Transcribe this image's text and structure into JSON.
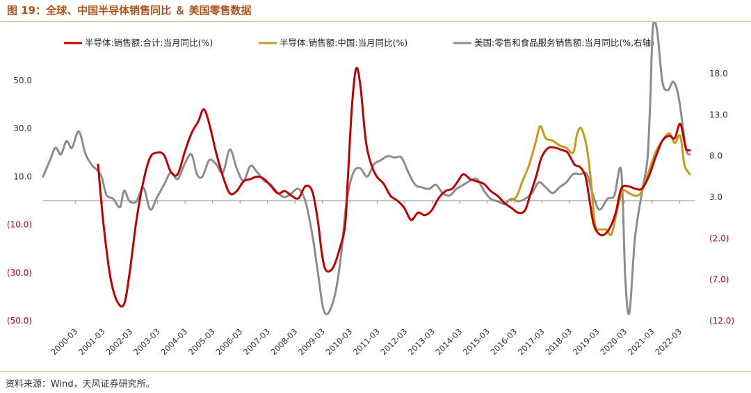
{
  "figure": {
    "title": "图 19：全球、中国半导体销售同比 ＆ 美国零售数据",
    "source": "资料来源：Wind，天风证券研究所。"
  },
  "chart_data": {
    "type": "line",
    "x_labels": [
      "2000-03",
      "2001-03",
      "2002-03",
      "2003-03",
      "2004-03",
      "2005-03",
      "2006-03",
      "2007-03",
      "2008-03",
      "2009-03",
      "2010-03",
      "2011-03",
      "2012-03",
      "2013-03",
      "2014-03",
      "2015-03",
      "2016-03",
      "2017-03",
      "2018-03",
      "2019-03",
      "2020-03",
      "2021-03",
      "2022-03"
    ],
    "y_left": {
      "ticks": [
        50,
        30,
        10,
        -10,
        -30,
        -50
      ],
      "labels": [
        "50.0",
        "30.0",
        "10.0",
        "(10.0)",
        "(30.0)",
        "(50.0)"
      ],
      "range": [
        -50,
        50
      ]
    },
    "y_right": {
      "ticks": [
        18,
        13,
        8,
        3,
        -2,
        -7,
        -12
      ],
      "labels": [
        "18.0",
        "13.0",
        "8.0",
        "3.0",
        "(2.0)",
        "(7.0)",
        "(12.0)"
      ],
      "range": [
        -12,
        18
      ]
    },
    "legend": {
      "placement": "top"
    },
    "series": [
      {
        "name": "半导体:销售额:合计:当月同比(%)",
        "axis": "left",
        "color": "#c00000",
        "points": [
          [
            2001.0,
            15
          ],
          [
            2001.2,
            -10
          ],
          [
            2001.45,
            -32
          ],
          [
            2001.7,
            -42
          ],
          [
            2001.95,
            -43
          ],
          [
            2002.15,
            -30
          ],
          [
            2002.4,
            -8
          ],
          [
            2002.65,
            8
          ],
          [
            2002.9,
            18
          ],
          [
            2003.15,
            20
          ],
          [
            2003.4,
            19
          ],
          [
            2003.65,
            12
          ],
          [
            2003.9,
            11
          ],
          [
            2004.15,
            20
          ],
          [
            2004.4,
            28
          ],
          [
            2004.65,
            33
          ],
          [
            2004.85,
            38
          ],
          [
            2005.05,
            32
          ],
          [
            2005.3,
            20
          ],
          [
            2005.55,
            10
          ],
          [
            2005.8,
            3
          ],
          [
            2006.05,
            4
          ],
          [
            2006.3,
            8
          ],
          [
            2006.55,
            9
          ],
          [
            2006.8,
            10
          ],
          [
            2007.05,
            9
          ],
          [
            2007.3,
            6
          ],
          [
            2007.55,
            3
          ],
          [
            2007.8,
            4
          ],
          [
            2008.05,
            2
          ],
          [
            2008.3,
            1
          ],
          [
            2008.55,
            6
          ],
          [
            2008.8,
            4
          ],
          [
            2009.0,
            -8
          ],
          [
            2009.15,
            -22
          ],
          [
            2009.3,
            -29
          ],
          [
            2009.55,
            -28
          ],
          [
            2009.8,
            -20
          ],
          [
            2010.0,
            -10
          ],
          [
            2010.1,
            10
          ],
          [
            2010.25,
            40
          ],
          [
            2010.4,
            55
          ],
          [
            2010.55,
            48
          ],
          [
            2010.75,
            25
          ],
          [
            2010.95,
            15
          ],
          [
            2011.15,
            10
          ],
          [
            2011.4,
            7
          ],
          [
            2011.65,
            2
          ],
          [
            2011.9,
            0
          ],
          [
            2012.15,
            -3
          ],
          [
            2012.4,
            -8
          ],
          [
            2012.65,
            -5
          ],
          [
            2012.9,
            -6
          ],
          [
            2013.15,
            -4
          ],
          [
            2013.4,
            1
          ],
          [
            2013.65,
            4
          ],
          [
            2013.9,
            5
          ],
          [
            2014.1,
            8
          ],
          [
            2014.3,
            11
          ],
          [
            2014.55,
            9
          ],
          [
            2014.8,
            8
          ],
          [
            2015.05,
            7
          ],
          [
            2015.3,
            4
          ],
          [
            2015.55,
            2
          ],
          [
            2015.8,
            -1
          ],
          [
            2016.05,
            -3
          ],
          [
            2016.3,
            -5
          ],
          [
            2016.55,
            -4
          ],
          [
            2016.75,
            3
          ],
          [
            2016.95,
            10
          ],
          [
            2017.15,
            18
          ],
          [
            2017.4,
            22
          ],
          [
            2017.65,
            22
          ],
          [
            2017.9,
            21
          ],
          [
            2018.1,
            20
          ],
          [
            2018.35,
            15
          ],
          [
            2018.55,
            14
          ],
          [
            2018.75,
            10
          ],
          [
            2018.9,
            0
          ],
          [
            2019.05,
            -10
          ],
          [
            2019.25,
            -14
          ],
          [
            2019.45,
            -14
          ],
          [
            2019.65,
            -11
          ],
          [
            2019.85,
            -5
          ],
          [
            2020.05,
            5
          ],
          [
            2020.3,
            6
          ],
          [
            2020.55,
            5
          ],
          [
            2020.8,
            5
          ],
          [
            2021.05,
            10
          ],
          [
            2021.3,
            18
          ],
          [
            2021.55,
            25
          ],
          [
            2021.8,
            27
          ],
          [
            2022.0,
            26
          ],
          [
            2022.2,
            32
          ],
          [
            2022.4,
            22
          ],
          [
            2022.55,
            21
          ]
        ]
      },
      {
        "name": "半导体:销售额:中国:当月同比(%)",
        "axis": "left",
        "color": "#c99a14",
        "points": [
          [
            2016.05,
            0
          ],
          [
            2016.25,
            2
          ],
          [
            2016.45,
            8
          ],
          [
            2016.7,
            15
          ],
          [
            2016.95,
            25
          ],
          [
            2017.1,
            31
          ],
          [
            2017.3,
            26
          ],
          [
            2017.55,
            25
          ],
          [
            2017.8,
            23
          ],
          [
            2018.05,
            22
          ],
          [
            2018.3,
            20
          ],
          [
            2018.45,
            28
          ],
          [
            2018.6,
            30
          ],
          [
            2018.8,
            22
          ],
          [
            2018.95,
            8
          ],
          [
            2019.1,
            -10
          ],
          [
            2019.3,
            -12
          ],
          [
            2019.5,
            -12
          ],
          [
            2019.7,
            -14
          ],
          [
            2019.9,
            -4
          ],
          [
            2020.1,
            4
          ],
          [
            2020.35,
            3
          ],
          [
            2020.6,
            2
          ],
          [
            2020.8,
            4
          ],
          [
            2021.05,
            12
          ],
          [
            2021.3,
            20
          ],
          [
            2021.55,
            25
          ],
          [
            2021.8,
            28
          ],
          [
            2022.0,
            24
          ],
          [
            2022.2,
            27
          ],
          [
            2022.35,
            15
          ],
          [
            2022.55,
            11
          ]
        ]
      },
      {
        "name": "美国:零售和食品服务销售额:当月同比(%,右轴)",
        "axis": "right",
        "color": "#8c8c8c",
        "points": [
          [
            1999.0,
            5.5
          ],
          [
            1999.25,
            7.5
          ],
          [
            1999.45,
            9.0
          ],
          [
            1999.65,
            8.2
          ],
          [
            1999.85,
            9.8
          ],
          [
            2000.05,
            9.0
          ],
          [
            2000.3,
            11.0
          ],
          [
            2000.55,
            8.2
          ],
          [
            2000.8,
            6.8
          ],
          [
            2001.0,
            6.2
          ],
          [
            2001.15,
            5.3
          ],
          [
            2001.3,
            3.3
          ],
          [
            2001.55,
            2.8
          ],
          [
            2001.8,
            1.8
          ],
          [
            2001.95,
            3.8
          ],
          [
            2002.15,
            2.5
          ],
          [
            2002.4,
            2.5
          ],
          [
            2002.65,
            4.2
          ],
          [
            2002.9,
            1.5
          ],
          [
            2003.15,
            3.0
          ],
          [
            2003.4,
            4.5
          ],
          [
            2003.65,
            6.0
          ],
          [
            2003.9,
            5.2
          ],
          [
            2004.15,
            7.0
          ],
          [
            2004.4,
            8.2
          ],
          [
            2004.6,
            5.8
          ],
          [
            2004.8,
            5.5
          ],
          [
            2005.05,
            7.5
          ],
          [
            2005.3,
            7.0
          ],
          [
            2005.55,
            6.0
          ],
          [
            2005.8,
            8.8
          ],
          [
            2006.05,
            6.5
          ],
          [
            2006.3,
            5.0
          ],
          [
            2006.55,
            6.8
          ],
          [
            2006.8,
            6.0
          ],
          [
            2007.05,
            5.0
          ],
          [
            2007.3,
            4.5
          ],
          [
            2007.55,
            3.5
          ],
          [
            2007.8,
            3.0
          ],
          [
            2008.05,
            3.5
          ],
          [
            2008.3,
            4.0
          ],
          [
            2008.55,
            2.5
          ],
          [
            2008.8,
            -1.5
          ],
          [
            2009.0,
            -6.0
          ],
          [
            2009.2,
            -10.5
          ],
          [
            2009.4,
            -11.0
          ],
          [
            2009.65,
            -8.5
          ],
          [
            2009.85,
            -4.0
          ],
          [
            2010.05,
            2.5
          ],
          [
            2010.3,
            6.0
          ],
          [
            2010.55,
            6.5
          ],
          [
            2010.8,
            5.5
          ],
          [
            2011.05,
            7.0
          ],
          [
            2011.3,
            7.5
          ],
          [
            2011.55,
            8.0
          ],
          [
            2011.8,
            7.8
          ],
          [
            2012.05,
            7.8
          ],
          [
            2012.3,
            6.0
          ],
          [
            2012.55,
            4.5
          ],
          [
            2012.8,
            4.2
          ],
          [
            2013.05,
            4.0
          ],
          [
            2013.3,
            4.5
          ],
          [
            2013.55,
            3.5
          ],
          [
            2013.8,
            3.2
          ],
          [
            2014.05,
            4.0
          ],
          [
            2014.3,
            4.5
          ],
          [
            2014.55,
            5.0
          ],
          [
            2014.8,
            5.2
          ],
          [
            2015.05,
            3.8
          ],
          [
            2015.3,
            2.8
          ],
          [
            2015.55,
            2.5
          ],
          [
            2015.8,
            2.2
          ],
          [
            2016.05,
            2.8
          ],
          [
            2016.3,
            2.5
          ],
          [
            2016.55,
            2.8
          ],
          [
            2016.8,
            3.5
          ],
          [
            2017.05,
            4.8
          ],
          [
            2017.3,
            4.2
          ],
          [
            2017.55,
            3.5
          ],
          [
            2017.8,
            4.2
          ],
          [
            2018.05,
            4.8
          ],
          [
            2018.3,
            5.8
          ],
          [
            2018.55,
            5.8
          ],
          [
            2018.8,
            5.8
          ],
          [
            2019.0,
            3.5
          ],
          [
            2019.25,
            1.5
          ],
          [
            2019.55,
            2.8
          ],
          [
            2019.8,
            3.2
          ],
          [
            2020.05,
            6.2
          ],
          [
            2020.2,
            -7.0
          ],
          [
            2020.35,
            -11.0
          ],
          [
            2020.55,
            -2.0
          ],
          [
            2020.8,
            3.5
          ],
          [
            2021.0,
            7.5
          ],
          [
            2021.1,
            14.0
          ],
          [
            2021.2,
            25.0
          ],
          [
            2021.35,
            28.0
          ],
          [
            2021.55,
            17.0
          ],
          [
            2021.75,
            16.0
          ],
          [
            2021.95,
            17.0
          ],
          [
            2022.15,
            15.0
          ],
          [
            2022.4,
            9.0
          ],
          [
            2022.55,
            8.2
          ]
        ]
      }
    ]
  }
}
